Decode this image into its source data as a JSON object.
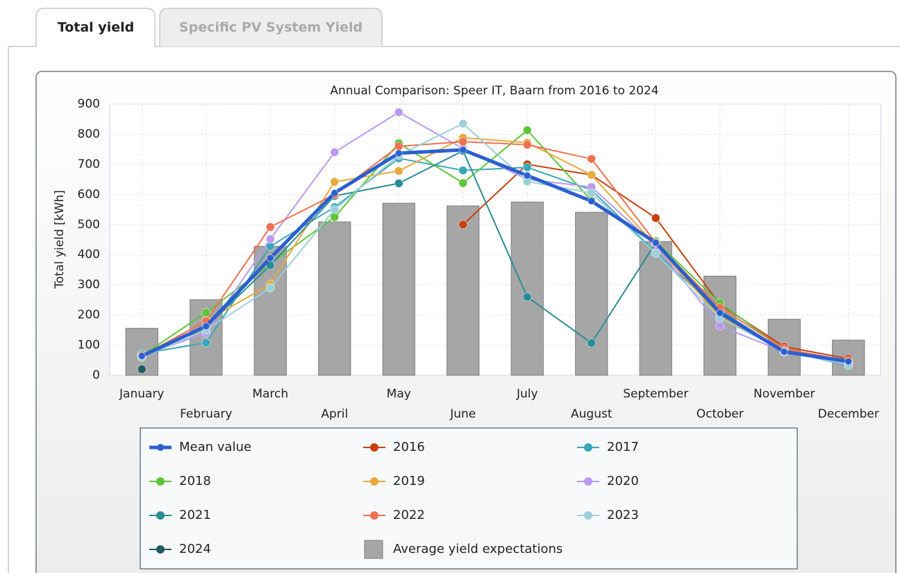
{
  "tabs": [
    "Total yield",
    "Specific PV System Yield"
  ],
  "chart_data": {
    "type": "line",
    "title": "Annual Comparison: Speer IT, Baarn from 2016 to 2024",
    "y_label": "Total yield [kWh]",
    "categories": [
      "January",
      "February",
      "March",
      "April",
      "May",
      "June",
      "July",
      "August",
      "September",
      "October",
      "November",
      "December"
    ],
    "ylim": [
      0,
      900
    ],
    "yticks": [
      0,
      100,
      200,
      300,
      400,
      500,
      600,
      700,
      800,
      900
    ],
    "grid": true,
    "series": [
      {
        "name": "Mean value",
        "color": "#2a5fcf",
        "width": 5,
        "values": [
          64,
          163,
          389,
          605,
          737,
          748,
          663,
          578,
          440,
          207,
          78,
          46
        ]
      },
      {
        "name": "2016",
        "color": "#c8400f",
        "width": 2,
        "values": [
          null,
          null,
          null,
          null,
          null,
          500,
          700,
          665,
          522,
          235,
          95,
          55
        ]
      },
      {
        "name": "2017",
        "color": "#3aa6b9",
        "width": 2,
        "values": [
          72,
          108,
          428,
          558,
          720,
          680,
          690,
          615,
          408,
          210,
          82,
          32
        ]
      },
      {
        "name": "2018",
        "color": "#5cc53a",
        "width": 2,
        "values": [
          65,
          208,
          370,
          525,
          770,
          638,
          813,
          580,
          445,
          240,
          85,
          45
        ]
      },
      {
        "name": "2019",
        "color": "#e8a93a",
        "width": 2,
        "values": [
          62,
          180,
          302,
          642,
          678,
          788,
          772,
          665,
          430,
          195,
          80,
          42
        ]
      },
      {
        "name": "2020",
        "color": "#b99af0",
        "width": 2,
        "values": [
          65,
          140,
          452,
          740,
          873,
          752,
          650,
          625,
          430,
          163,
          78,
          40
        ]
      },
      {
        "name": "2021",
        "color": "#2a8c96",
        "width": 2,
        "values": [
          68,
          160,
          365,
          595,
          637,
          745,
          260,
          107,
          440,
          215,
          80,
          45
        ]
      },
      {
        "name": "2022",
        "color": "#f07050",
        "width": 2,
        "values": [
          65,
          180,
          492,
          600,
          760,
          775,
          765,
          718,
          440,
          225,
          88,
          48
        ]
      },
      {
        "name": "2023",
        "color": "#9ccfd8",
        "width": 2,
        "values": [
          60,
          150,
          290,
          550,
          730,
          835,
          643,
          605,
          405,
          190,
          80,
          35
        ]
      },
      {
        "name": "2024",
        "color": "#1e5a5e",
        "width": 2,
        "values": [
          20,
          null,
          null,
          null,
          null,
          null,
          null,
          null,
          null,
          null,
          null,
          null
        ]
      },
      {
        "name": "Average yield expectations",
        "type": "bar",
        "color": "#a6a6a6",
        "values": [
          156,
          251,
          428,
          509,
          571,
          562,
          575,
          541,
          444,
          329,
          186,
          117
        ]
      }
    ]
  }
}
